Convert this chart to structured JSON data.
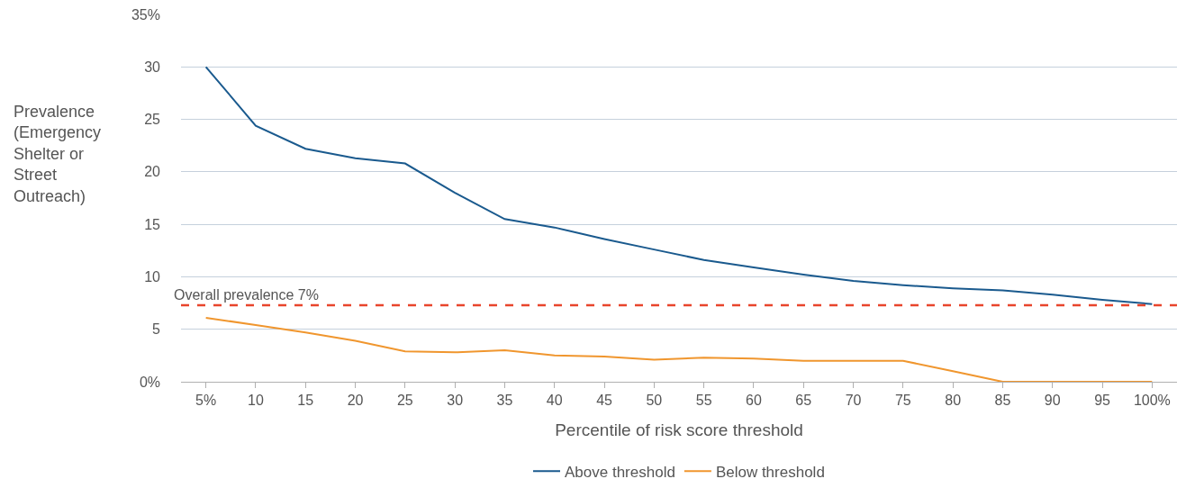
{
  "chart_data": {
    "type": "line",
    "xlabel": "Percentile of risk score threshold",
    "ylabel": "Prevalence (Emergency Shelter or Street Outreach)",
    "categories": [
      "5%",
      "10",
      "15",
      "20",
      "25",
      "30",
      "35",
      "40",
      "45",
      "50",
      "55",
      "60",
      "65",
      "70",
      "75",
      "80",
      "85",
      "90",
      "95",
      "100%"
    ],
    "series": [
      {
        "name": "Above threshold",
        "color": "#1a5a8e",
        "values": [
          30,
          24.4,
          22.2,
          21.3,
          20.8,
          18.0,
          15.5,
          14.7,
          13.6,
          12.6,
          11.6,
          10.9,
          10.2,
          9.6,
          9.2,
          8.9,
          8.7,
          8.3,
          7.8,
          7.4
        ]
      },
      {
        "name": "Below threshold",
        "color": "#f0962e",
        "values": [
          6.1,
          5.4,
          4.7,
          3.9,
          2.9,
          2.8,
          3.0,
          2.5,
          2.4,
          2.1,
          2.3,
          2.2,
          2.0,
          2.0,
          2.0,
          1.0,
          0,
          0,
          0,
          0
        ]
      }
    ],
    "ylim": [
      0,
      35
    ],
    "yticks": [
      {
        "value": 0,
        "label": "0%"
      },
      5,
      10,
      15,
      20,
      25,
      30,
      {
        "value": 35,
        "label": "35%"
      }
    ],
    "ref_lines": [
      {
        "axis": "y",
        "value": 7.3,
        "label": "Overall prevalence 7%",
        "color": "#e8452c",
        "line_style": "dashed"
      }
    ],
    "grid": "y",
    "legend": "bottom",
    "marker": "none",
    "line_style": "solid"
  }
}
